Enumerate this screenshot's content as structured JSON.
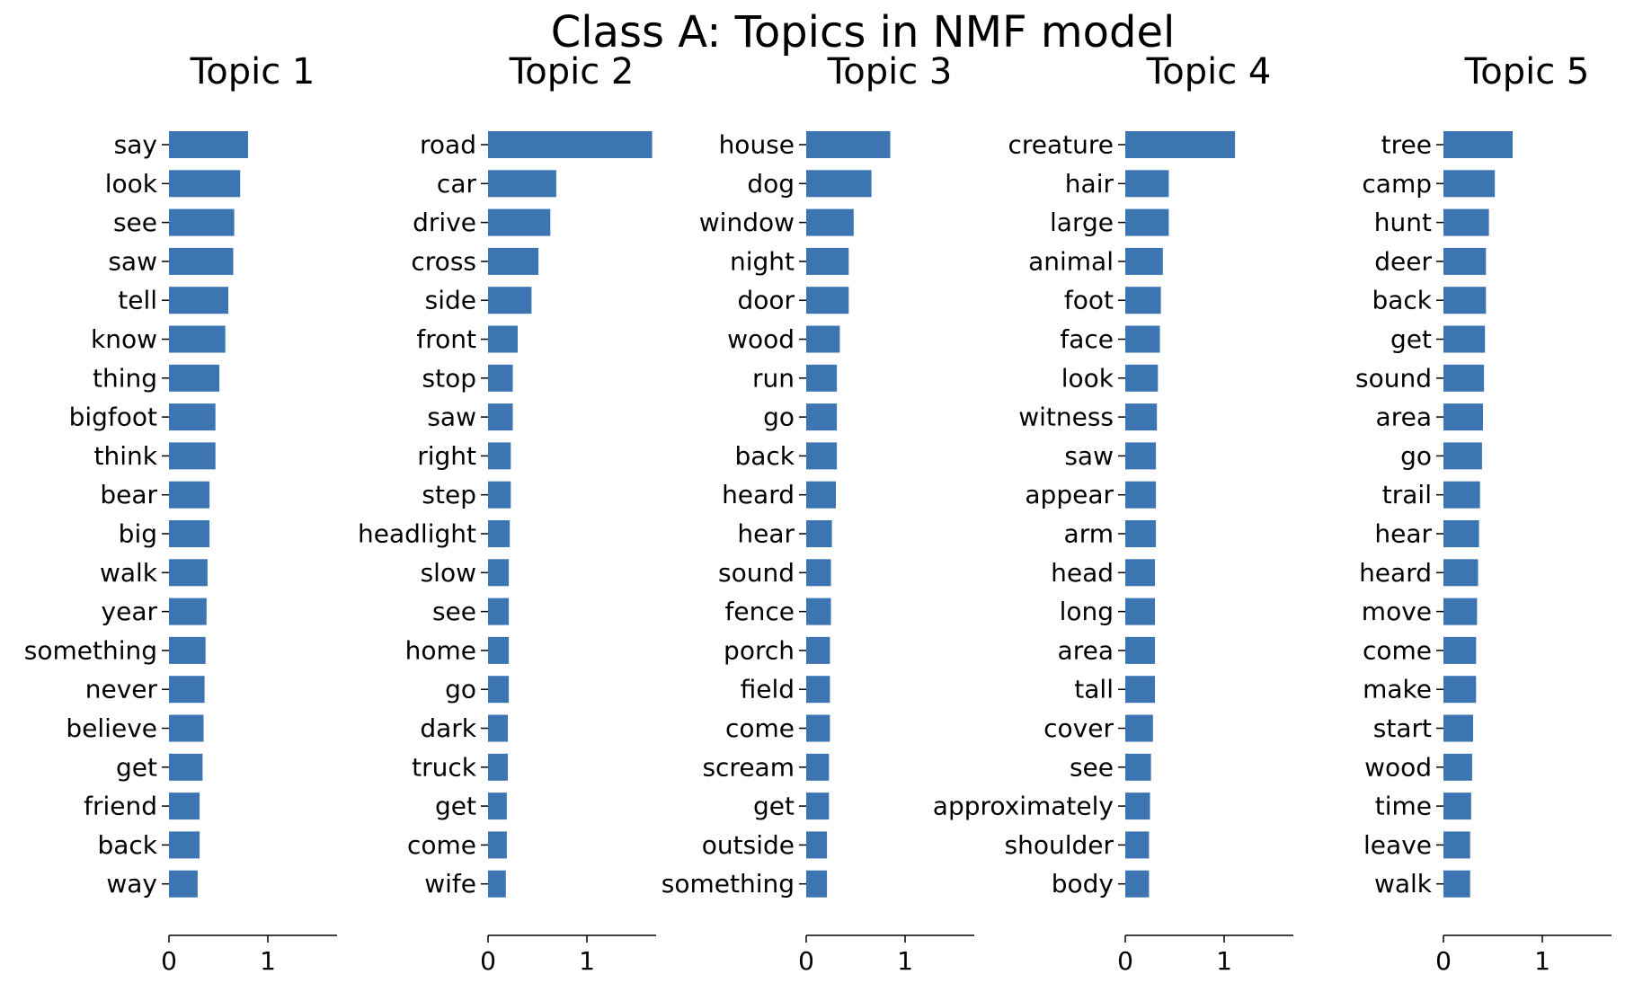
{
  "chart_data": {
    "type": "bar",
    "orientation": "horizontal",
    "title": "Class A: Topics in NMF model",
    "xlim": [
      0,
      1.7
    ],
    "xticks": [
      "0",
      "1"
    ],
    "bar_color": "#3c75b1",
    "panels": [
      {
        "title": "Topic 1",
        "categories": [
          "say",
          "look",
          "see",
          "saw",
          "tell",
          "know",
          "thing",
          "bigfoot",
          "think",
          "bear",
          "big",
          "walk",
          "year",
          "something",
          "never",
          "believe",
          "get",
          "friend",
          "back",
          "way"
        ],
        "values": [
          0.8,
          0.72,
          0.66,
          0.65,
          0.6,
          0.57,
          0.51,
          0.47,
          0.47,
          0.41,
          0.41,
          0.39,
          0.38,
          0.37,
          0.36,
          0.35,
          0.34,
          0.31,
          0.31,
          0.29
        ]
      },
      {
        "title": "Topic 2",
        "categories": [
          "road",
          "car",
          "drive",
          "cross",
          "side",
          "front",
          "stop",
          "saw",
          "right",
          "step",
          "headlight",
          "slow",
          "see",
          "home",
          "go",
          "dark",
          "truck",
          "get",
          "come",
          "wife"
        ],
        "values": [
          1.66,
          0.69,
          0.63,
          0.51,
          0.44,
          0.3,
          0.25,
          0.25,
          0.23,
          0.23,
          0.22,
          0.21,
          0.21,
          0.21,
          0.21,
          0.2,
          0.2,
          0.19,
          0.19,
          0.18
        ]
      },
      {
        "title": "Topic 3",
        "categories": [
          "house",
          "dog",
          "window",
          "night",
          "door",
          "wood",
          "run",
          "go",
          "back",
          "heard",
          "hear",
          "sound",
          "fence",
          "porch",
          "field",
          "come",
          "scream",
          "get",
          "outside",
          "something"
        ],
        "values": [
          0.85,
          0.66,
          0.48,
          0.43,
          0.43,
          0.34,
          0.31,
          0.31,
          0.31,
          0.3,
          0.26,
          0.25,
          0.25,
          0.24,
          0.24,
          0.24,
          0.23,
          0.23,
          0.21,
          0.21
        ]
      },
      {
        "title": "Topic 4",
        "categories": [
          "creature",
          "hair",
          "large",
          "animal",
          "foot",
          "face",
          "look",
          "witness",
          "saw",
          "appear",
          "arm",
          "head",
          "long",
          "area",
          "tall",
          "cover",
          "see",
          "approximately",
          "shoulder",
          "body"
        ],
        "values": [
          1.11,
          0.44,
          0.44,
          0.38,
          0.36,
          0.35,
          0.33,
          0.32,
          0.31,
          0.31,
          0.31,
          0.3,
          0.3,
          0.3,
          0.3,
          0.28,
          0.26,
          0.25,
          0.24,
          0.24
        ]
      },
      {
        "title": "Topic 5",
        "categories": [
          "tree",
          "camp",
          "hunt",
          "deer",
          "back",
          "get",
          "sound",
          "area",
          "go",
          "trail",
          "hear",
          "heard",
          "move",
          "come",
          "make",
          "start",
          "wood",
          "time",
          "leave",
          "walk"
        ],
        "values": [
          0.7,
          0.52,
          0.46,
          0.43,
          0.43,
          0.42,
          0.41,
          0.4,
          0.39,
          0.37,
          0.36,
          0.35,
          0.34,
          0.33,
          0.33,
          0.3,
          0.29,
          0.28,
          0.27,
          0.27
        ]
      }
    ]
  }
}
